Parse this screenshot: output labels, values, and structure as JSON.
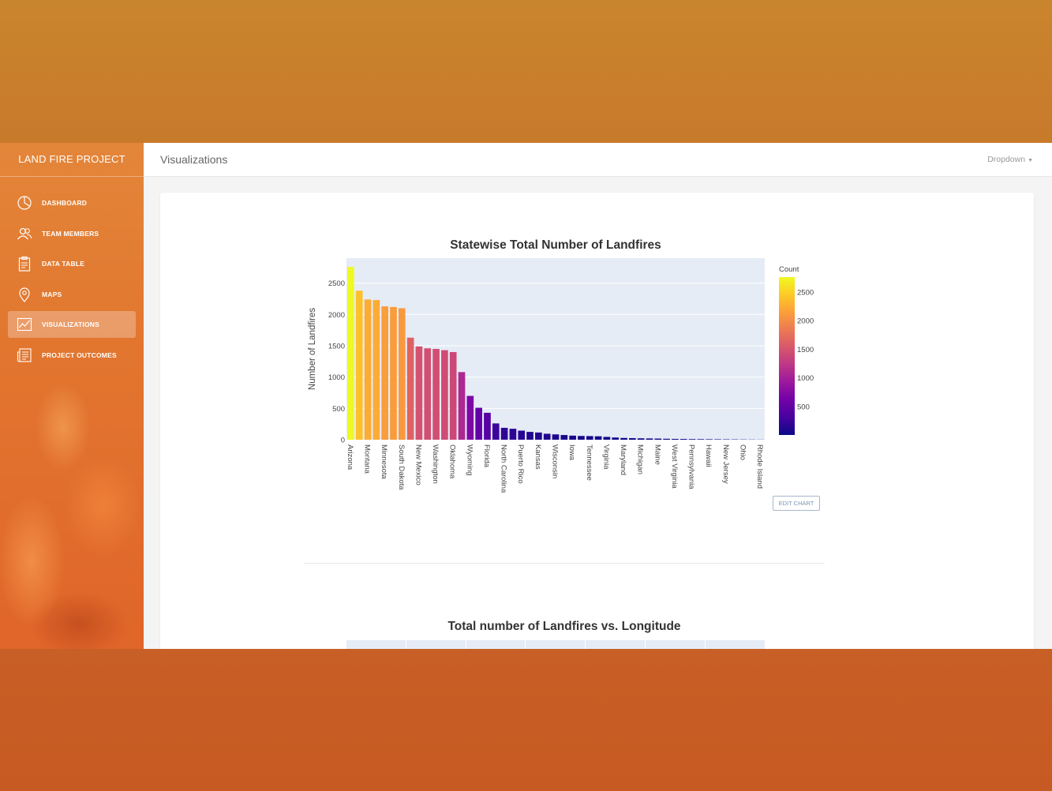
{
  "sidebar": {
    "brand": "LAND FIRE PROJECT",
    "items": [
      {
        "label": "DASHBOARD",
        "icon": "pie-chart-icon"
      },
      {
        "label": "TEAM MEMBERS",
        "icon": "users-icon"
      },
      {
        "label": "DATA TABLE",
        "icon": "clipboard-icon"
      },
      {
        "label": "MAPS",
        "icon": "map-pin-icon"
      },
      {
        "label": "VISUALIZATIONS",
        "icon": "line-chart-icon",
        "active": true
      },
      {
        "label": "PROJECT OUTCOMES",
        "icon": "news-icon"
      }
    ]
  },
  "header": {
    "title": "Visualizations",
    "dropdown": "Dropdown"
  },
  "chart1": {
    "edit_label": "EDIT CHART"
  },
  "chart2": {
    "title": "Total number of Landfires vs. Longitude"
  },
  "chart_data": [
    {
      "type": "bar",
      "title": "Statewise Total Number of Landfires",
      "xlabel": "",
      "ylabel": "Number of Landfires",
      "ylim": [
        0,
        2900
      ],
      "yticks": [
        0,
        500,
        1000,
        1500,
        2000,
        2500
      ],
      "categories": [
        "Arizona",
        "",
        "Montana",
        "",
        "Minnesota",
        "",
        "South Dakota",
        "",
        "New Mexico",
        "",
        "Washington",
        "",
        "Oklahoma",
        "",
        "Wyoming",
        "",
        "Florida",
        "",
        "North Carolina",
        "",
        "Puerto Rico",
        "",
        "Kansas",
        "",
        "Wisconsin",
        "",
        "Iowa",
        "",
        "Tennessee",
        "",
        "Virginia",
        "",
        "Maryland",
        "",
        "Michigan",
        "",
        "Maine",
        "",
        "West Virginia",
        "",
        "Pennsylvania",
        "",
        "Hawaii",
        "",
        "New Jersey",
        "",
        "Ohio",
        "",
        "Rhode Island"
      ],
      "values": [
        2760,
        2380,
        2240,
        2230,
        2130,
        2120,
        2100,
        1630,
        1490,
        1460,
        1450,
        1430,
        1400,
        1080,
        700,
        510,
        430,
        260,
        190,
        175,
        145,
        125,
        115,
        95,
        85,
        75,
        65,
        60,
        58,
        55,
        45,
        35,
        28,
        25,
        22,
        20,
        18,
        15,
        13,
        12,
        10,
        9,
        8,
        7,
        6,
        5,
        4,
        3,
        2
      ],
      "colorbar": {
        "title": "Count",
        "ticks": [
          500,
          1000,
          1500,
          2000,
          2500
        ],
        "range": [
          0,
          2760
        ],
        "colorscale": [
          "#0d0887",
          "#46039f",
          "#7201a8",
          "#9c179e",
          "#bd3786",
          "#d8576b",
          "#ed7953",
          "#fb9f3a",
          "#fdca26",
          "#f0f921"
        ]
      },
      "grid": true
    },
    {
      "type": "bar",
      "title": "Total number of Landfires vs. Longitude",
      "xlabel": "",
      "ylabel": ""
    }
  ]
}
